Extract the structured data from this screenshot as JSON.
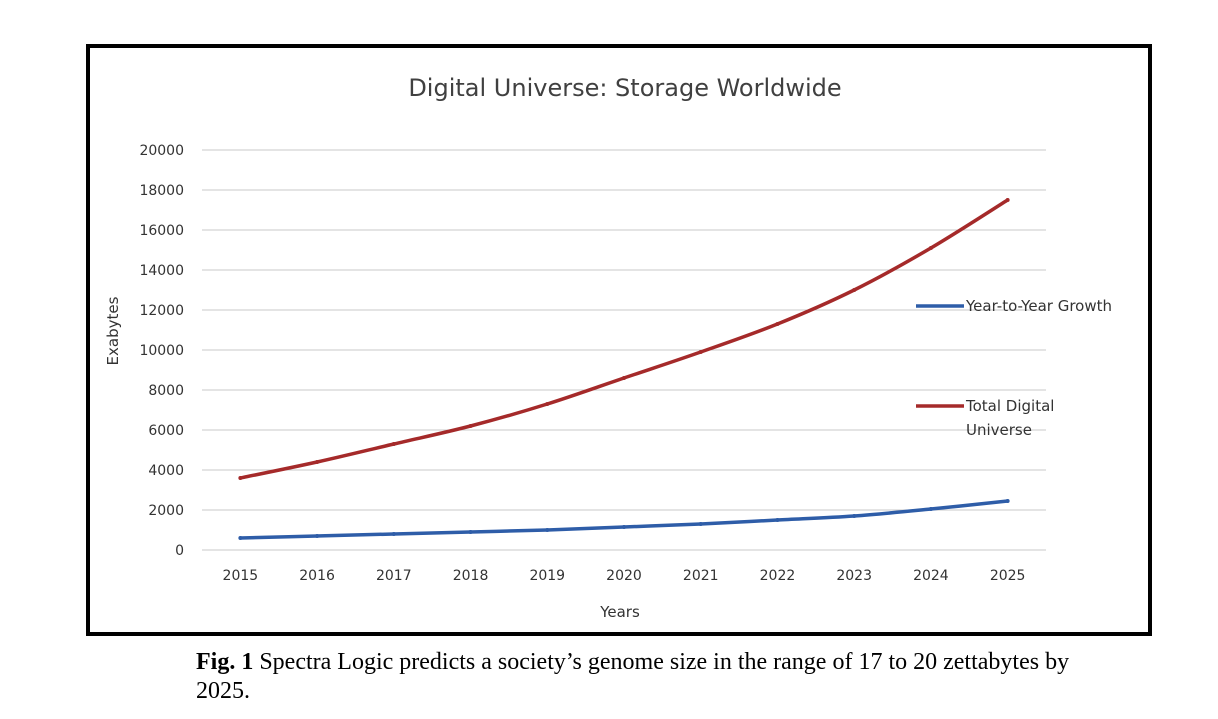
{
  "chart_data": {
    "type": "line",
    "title": "Digital Universe: Storage Worldwide",
    "xlabel": "Years",
    "ylabel": "Exabytes",
    "ylim": [
      0,
      20000
    ],
    "yticks": [
      "0",
      "2000",
      "4000",
      "6000",
      "8000",
      "10000",
      "12000",
      "14000",
      "16000",
      "18000",
      "20000"
    ],
    "categories": [
      "2015",
      "2016",
      "2017",
      "2018",
      "2019",
      "2020",
      "2021",
      "2022",
      "2023",
      "2024",
      "2025"
    ],
    "grid": true,
    "legend_position": "right",
    "series": [
      {
        "name": "Year-to-Year Growth",
        "color": "#2E5DA8",
        "values": [
          600,
          700,
          800,
          900,
          1000,
          1150,
          1300,
          1500,
          1700,
          2050,
          2450
        ]
      },
      {
        "name": "Total Digital Universe",
        "color": "#A52A2A",
        "values": [
          3600,
          4400,
          5300,
          6200,
          7300,
          8600,
          9900,
          11300,
          13000,
          15100,
          17500
        ]
      }
    ]
  },
  "caption": {
    "label": "Fig. 1",
    "text": " Spectra Logic predicts a society’s genome size in the range of 17 to 20 zettabytes by 2025."
  }
}
